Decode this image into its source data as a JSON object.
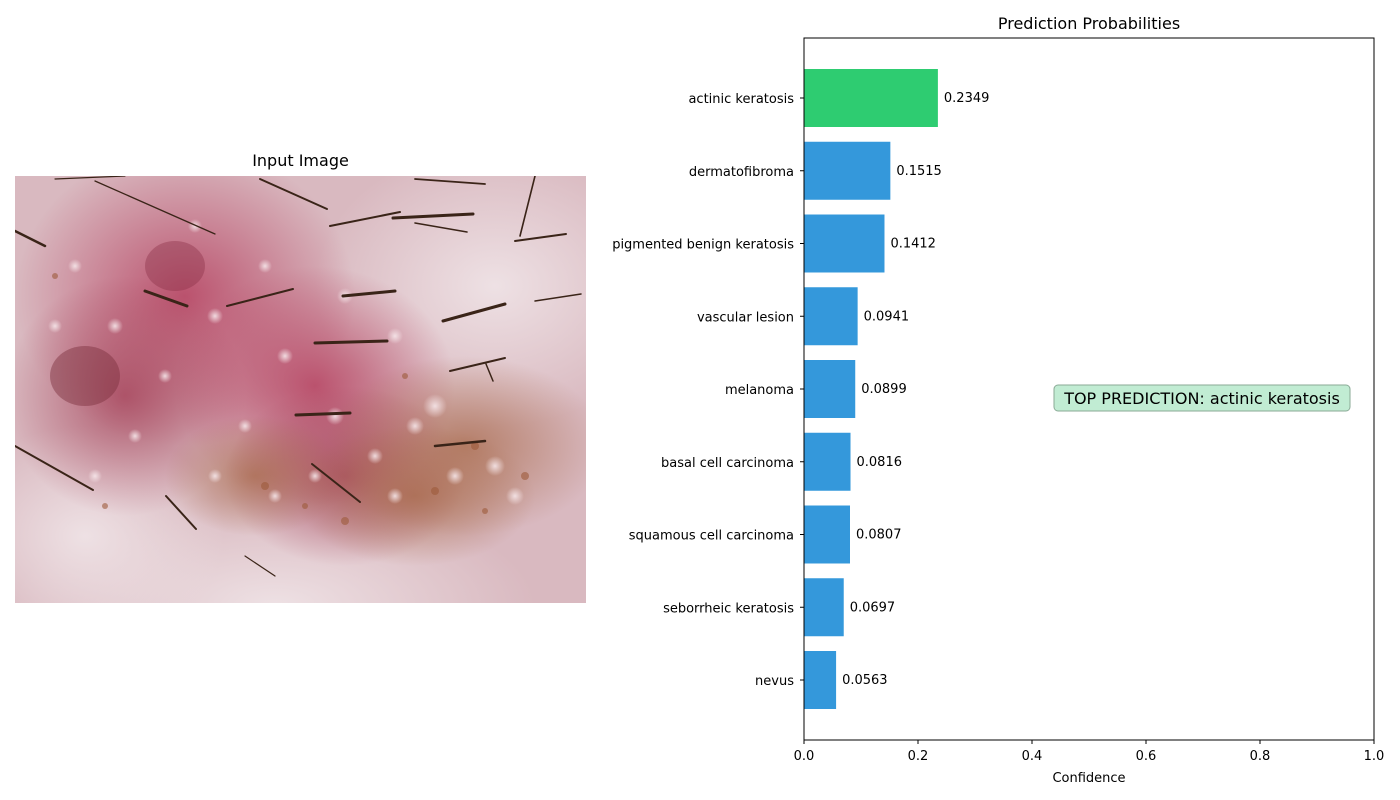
{
  "image_panel": {
    "title": "Input Image"
  },
  "chart_data": {
    "type": "bar",
    "orientation": "horizontal",
    "title": "Prediction Probabilities",
    "xlabel": "Confidence",
    "ylabel": "",
    "xlim": [
      0,
      1
    ],
    "x_ticks": [
      "0.0",
      "0.2",
      "0.4",
      "0.6",
      "0.8",
      "1.0"
    ],
    "categories": [
      "actinic keratosis",
      "dermatofibroma",
      "pigmented benign keratosis",
      "vascular lesion",
      "melanoma",
      "basal cell carcinoma",
      "squamous cell carcinoma",
      "seborrheic keratosis",
      "nevus"
    ],
    "values": [
      0.2349,
      0.1515,
      0.1412,
      0.0941,
      0.0899,
      0.0816,
      0.0807,
      0.0697,
      0.0563
    ],
    "value_labels": [
      "0.2349",
      "0.1515",
      "0.1412",
      "0.0941",
      "0.0899",
      "0.0816",
      "0.0807",
      "0.0697",
      "0.0563"
    ],
    "highlight_index": 0,
    "colors": {
      "highlight": "#2ecc71",
      "default": "#3498db",
      "annotation_bg": "#c1ecd3",
      "annotation_border": "#8aaa96"
    },
    "annotation": "TOP PREDICTION: actinic keratosis",
    "grid": false
  }
}
